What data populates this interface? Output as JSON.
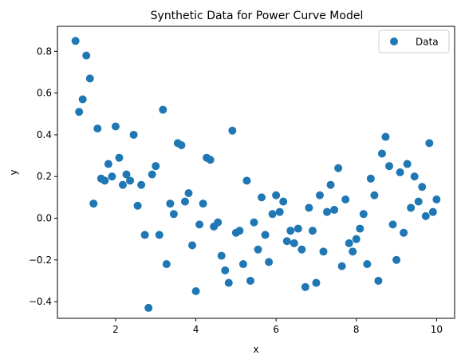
{
  "chart_data": {
    "type": "scatter",
    "title": "Synthetic Data for Power Curve Model",
    "xlabel": "x",
    "ylabel": "y",
    "xlim": [
      0.55,
      10.45
    ],
    "ylim": [
      -0.48,
      0.92
    ],
    "xticks": [
      2,
      4,
      6,
      8,
      10
    ],
    "yticks": [
      -0.4,
      -0.2,
      0.0,
      0.2,
      0.4,
      0.6,
      0.8
    ],
    "grid": false,
    "legend_position": "top-right",
    "series": [
      {
        "name": "Data",
        "color": "#1f77b4",
        "x": [
          1.0,
          1.09,
          1.18,
          1.27,
          1.36,
          1.45,
          1.55,
          1.64,
          1.73,
          1.82,
          1.91,
          2.0,
          2.09,
          2.18,
          2.27,
          2.36,
          2.45,
          2.55,
          2.64,
          2.73,
          2.82,
          2.91,
          3.0,
          3.09,
          3.18,
          3.27,
          3.36,
          3.45,
          3.55,
          3.64,
          3.73,
          3.82,
          3.91,
          4.0,
          4.09,
          4.18,
          4.27,
          4.36,
          4.45,
          4.55,
          4.64,
          4.73,
          4.82,
          4.91,
          5.0,
          5.09,
          5.18,
          5.27,
          5.36,
          5.45,
          5.55,
          5.64,
          5.73,
          5.82,
          5.91,
          6.0,
          6.09,
          6.18,
          6.27,
          6.36,
          6.45,
          6.55,
          6.64,
          6.73,
          6.82,
          6.91,
          7.0,
          7.09,
          7.18,
          7.27,
          7.36,
          7.45,
          7.55,
          7.64,
          7.73,
          7.82,
          7.91,
          8.0,
          8.09,
          8.18,
          8.27,
          8.36,
          8.45,
          8.55,
          8.64,
          8.73,
          8.82,
          8.91,
          9.0,
          9.09,
          9.18,
          9.27,
          9.36,
          9.45,
          9.55,
          9.64,
          9.73,
          9.82,
          9.91,
          10.0
        ],
        "y": [
          0.85,
          0.51,
          0.57,
          0.78,
          0.67,
          0.07,
          0.43,
          0.19,
          0.18,
          0.26,
          0.2,
          0.44,
          0.29,
          0.16,
          0.21,
          0.18,
          0.4,
          0.06,
          0.16,
          -0.08,
          -0.43,
          0.21,
          0.25,
          -0.08,
          0.52,
          -0.22,
          0.07,
          0.02,
          0.36,
          0.35,
          0.08,
          0.12,
          -0.13,
          -0.35,
          -0.03,
          0.07,
          0.29,
          0.28,
          -0.04,
          -0.02,
          -0.18,
          -0.25,
          -0.31,
          0.42,
          -0.07,
          -0.06,
          -0.22,
          0.18,
          -0.3,
          -0.02,
          -0.15,
          0.1,
          -0.08,
          -0.21,
          0.02,
          0.11,
          0.03,
          0.08,
          -0.11,
          -0.06,
          -0.12,
          -0.05,
          -0.15,
          -0.33,
          0.05,
          -0.06,
          -0.31,
          0.11,
          -0.16,
          0.03,
          0.16,
          0.04,
          0.24,
          -0.23,
          0.09,
          -0.12,
          -0.16,
          -0.1,
          -0.05,
          0.02,
          -0.22,
          0.19,
          0.11,
          -0.3,
          0.31,
          0.39,
          0.25,
          -0.03,
          -0.2,
          0.22,
          -0.07,
          0.26,
          0.05,
          0.2,
          0.08,
          0.15,
          0.01,
          0.36,
          0.03,
          0.09
        ]
      }
    ]
  }
}
